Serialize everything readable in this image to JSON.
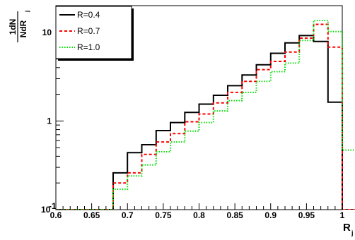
{
  "chart_data": {
    "type": "line",
    "title": "",
    "xlabel": "R",
    "xlabel_sub": "j",
    "ylabel_num": "1dN",
    "ylabel_den": "NdR",
    "ylabel_sub": "j",
    "xlim": [
      0.6,
      1.0
    ],
    "ylim": [
      0.1,
      20
    ],
    "yscale": "log",
    "grid": false,
    "legend_position": "top-left",
    "x_ticks": [
      {
        "value": 0.6,
        "label": "0.6"
      },
      {
        "value": 0.65,
        "label": "0.65"
      },
      {
        "value": 0.7,
        "label": "0.7"
      },
      {
        "value": 0.75,
        "label": "0.75"
      },
      {
        "value": 0.8,
        "label": "0.8"
      },
      {
        "value": 0.85,
        "label": "0.85"
      },
      {
        "value": 0.9,
        "label": "0.9"
      },
      {
        "value": 0.95,
        "label": "0.95"
      },
      {
        "value": 1.0,
        "label": "1"
      }
    ],
    "y_ticks": [
      {
        "value": 0.1,
        "label": "10-1"
      },
      {
        "value": 1,
        "label": "1"
      },
      {
        "value": 10,
        "label": "10"
      }
    ],
    "bin_edges": [
      0.6,
      0.62,
      0.64,
      0.66,
      0.68,
      0.7,
      0.72,
      0.74,
      0.76,
      0.78,
      0.8,
      0.82,
      0.84,
      0.86,
      0.88,
      0.9,
      0.92,
      0.94,
      0.96,
      0.98,
      1.0,
      1.02
    ],
    "series": [
      {
        "name": "R=0.4",
        "color": "#000000",
        "style": "solid",
        "values": [
          0.1,
          0.1,
          0.1,
          0.1,
          0.26,
          0.44,
          0.54,
          0.78,
          0.96,
          1.25,
          1.55,
          1.95,
          2.5,
          3.3,
          4.3,
          5.8,
          7.6,
          9.2,
          7.9,
          1.63,
          0.1
        ]
      },
      {
        "name": "R=0.7",
        "color": "#ff0000",
        "style": "dashed",
        "values": [
          0.1,
          0.1,
          0.1,
          0.1,
          0.2,
          0.26,
          0.42,
          0.58,
          0.72,
          0.98,
          1.2,
          1.6,
          2.1,
          2.8,
          3.8,
          4.7,
          6.0,
          8.6,
          12.3,
          6.8,
          0.1
        ]
      },
      {
        "name": "R=1.0",
        "color": "#00dd00",
        "style": "dotted",
        "values": [
          0.1,
          0.1,
          0.1,
          0.1,
          0.17,
          0.24,
          0.32,
          0.45,
          0.58,
          0.77,
          0.96,
          1.3,
          1.7,
          2.1,
          2.8,
          3.6,
          4.5,
          8.1,
          13.6,
          10.2,
          0.47
        ]
      }
    ]
  }
}
